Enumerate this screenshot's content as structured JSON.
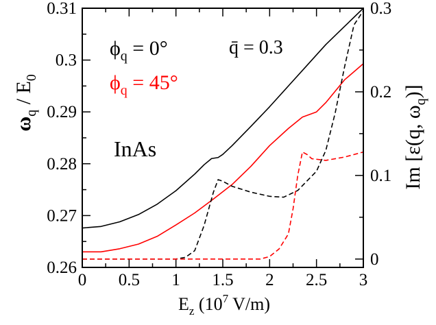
{
  "chart_data": {
    "type": "line",
    "x_axis": {
      "label_main": "E",
      "label_sub": "z",
      "label_rest_open": " (10",
      "label_sup": "7",
      "label_rest_close": " V/m)",
      "range": [
        0,
        3
      ],
      "ticks": [
        "0",
        "0.5",
        "1",
        "1.5",
        "2",
        "2.5",
        "3"
      ]
    },
    "y_left": {
      "label_main": "ω",
      "label_sub": "q",
      "label_div": " / E",
      "label_sub2": "0",
      "range": [
        0.26,
        0.31
      ],
      "ticks": [
        "0.26",
        "0.27",
        "0.28",
        "0.29",
        "0.3",
        "0.31"
      ]
    },
    "y_right": {
      "label_main": "Im [ε(q, ω",
      "label_sub": "q",
      "label_close": ")]",
      "range": [
        -0.01,
        0.3
      ],
      "ticks": [
        "0",
        "0.1",
        "0.2",
        "0.3"
      ]
    },
    "material_label": "InAs",
    "annotations": {
      "phi0_symbol": "ϕ",
      "phi0_sub": "q",
      "phi0_value": " = 0°",
      "phi45_symbol": "ϕ",
      "phi45_sub": "q",
      "phi45_value": " = 45°",
      "qbar_symbol": "q̄",
      "qbar_value": " = 0.3"
    },
    "series": [
      {
        "name": "ω_q/E_0, ϕ_q = 0°",
        "axis": "left",
        "color": "#000000",
        "dash": "solid",
        "x": [
          0,
          0.2,
          0.4,
          0.6,
          0.8,
          1.0,
          1.2,
          1.3,
          1.38,
          1.45,
          1.5,
          1.6,
          1.8,
          2.0,
          2.2,
          2.4,
          2.6,
          2.8,
          3.0
        ],
        "y": [
          0.2676,
          0.2679,
          0.2688,
          0.2702,
          0.2722,
          0.2748,
          0.278,
          0.2798,
          0.281,
          0.2812,
          0.2818,
          0.2835,
          0.2872,
          0.291,
          0.295,
          0.299,
          0.303,
          0.3065,
          0.31
        ]
      },
      {
        "name": "ω_q/E_0, ϕ_q = 45°",
        "axis": "left",
        "color": "#ff0000",
        "dash": "solid",
        "x": [
          0,
          0.2,
          0.4,
          0.6,
          0.8,
          1.0,
          1.2,
          1.4,
          1.6,
          1.8,
          2.0,
          2.2,
          2.35,
          2.5,
          2.6,
          2.8,
          3.0
        ],
        "y": [
          0.263,
          0.263,
          0.2636,
          0.2645,
          0.266,
          0.2682,
          0.2705,
          0.2732,
          0.276,
          0.2795,
          0.2835,
          0.2868,
          0.289,
          0.29,
          0.2918,
          0.2962,
          0.2993
        ]
      },
      {
        "name": "Im ε, ϕ_q = 0°",
        "axis": "right",
        "color": "#000000",
        "dash": "dashed",
        "x": [
          0,
          0.5,
          1.0,
          1.1,
          1.2,
          1.3,
          1.4,
          1.45,
          1.5,
          1.6,
          1.8,
          2.0,
          2.15,
          2.3,
          2.5,
          2.6,
          2.7,
          2.8,
          2.9,
          3.0
        ],
        "y": [
          0.0,
          0.0,
          0.0,
          0.002,
          0.01,
          0.04,
          0.08,
          0.095,
          0.093,
          0.087,
          0.08,
          0.075,
          0.074,
          0.082,
          0.105,
          0.13,
          0.175,
          0.23,
          0.28,
          0.297
        ]
      },
      {
        "name": "Im ε, ϕ_q = 45°",
        "axis": "right",
        "color": "#ff0000",
        "dash": "dashed",
        "x": [
          0,
          0.5,
          1.0,
          1.5,
          1.9,
          2.0,
          2.1,
          2.2,
          2.25,
          2.3,
          2.35,
          2.4,
          2.45,
          2.6,
          2.8,
          3.0
        ],
        "y": [
          0.0,
          0.0,
          0.0,
          0.0,
          0.0,
          0.003,
          0.012,
          0.03,
          0.06,
          0.1,
          0.128,
          0.125,
          0.12,
          0.118,
          0.122,
          0.128
        ]
      }
    ]
  }
}
